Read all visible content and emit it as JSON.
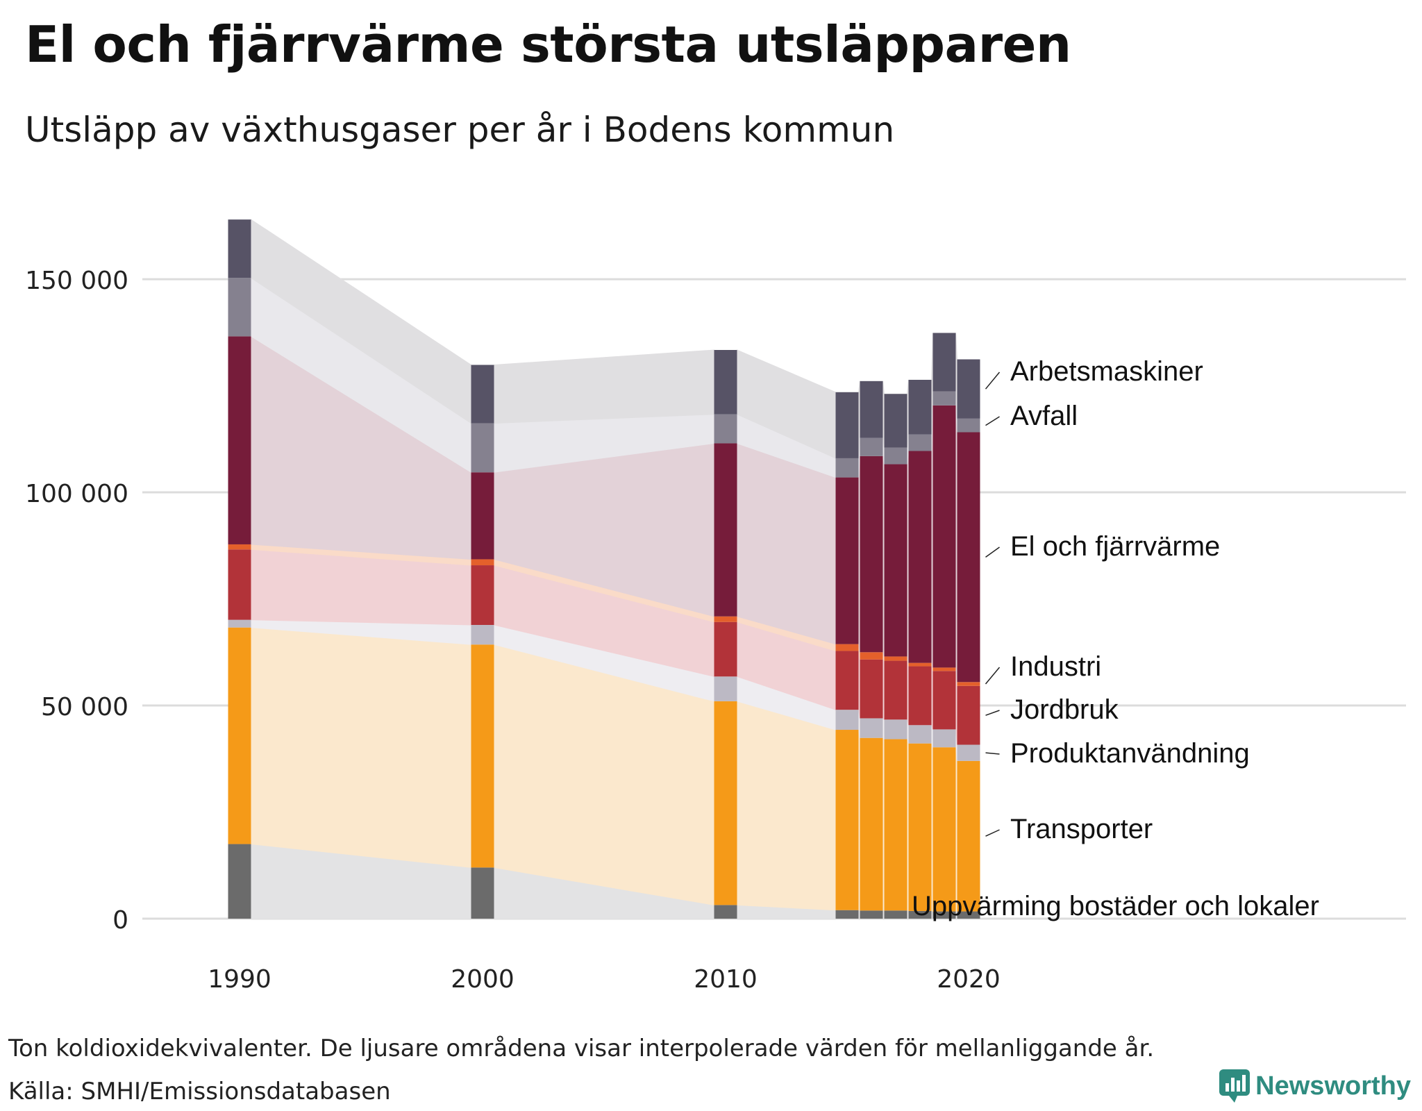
{
  "title": "El och fjärrvärme största utsläpparen",
  "subtitle": "Utsläpp av växthusgaser per år i Bodens kommun",
  "footnote": "Ton koldioxidekvivalenter. De ljusare områdena visar interpolerade värden för mellanliggande år.",
  "source": "Källa: SMHI/Emissionsdatabasen",
  "logo": {
    "text": "Newsworthy",
    "color": "#2f8c80"
  },
  "chart_data": {
    "type": "bar",
    "stacked": true,
    "years": [
      1990,
      2000,
      2010,
      2015,
      2016,
      2017,
      2018,
      2019,
      2020
    ],
    "x_ticks": [
      "1990",
      "2000",
      "2010",
      "2020"
    ],
    "x_tick_values": [
      1990,
      2000,
      2010,
      2020
    ],
    "y_ticks": [
      {
        "value": 0,
        "label": "0"
      },
      {
        "value": 50000,
        "label": "50 000"
      },
      {
        "value": 100000,
        "label": "100 000"
      },
      {
        "value": 150000,
        "label": "150 000"
      }
    ],
    "ylim": [
      0,
      165000
    ],
    "xlim": [
      1986,
      2038
    ],
    "series": [
      {
        "name": "Uppvärming bostäder och lokaler",
        "color": "#6b6b6b",
        "band": "#e3e3e4",
        "values": [
          17500,
          12000,
          3200,
          2000,
          1900,
          1900,
          1800,
          1700,
          1700
        ]
      },
      {
        "name": "Transporter",
        "color": "#f59a18",
        "band": "#fbe8cd",
        "values": [
          50800,
          52300,
          47800,
          42300,
          40500,
          40200,
          39300,
          38500,
          35300
        ]
      },
      {
        "name": "Produktanvändning",
        "color": "#bcb9c4",
        "band": "#eeedf1",
        "values": [
          1800,
          4600,
          5800,
          4700,
          4600,
          4600,
          4300,
          4200,
          3800
        ]
      },
      {
        "name": "Jordbruk",
        "color": "#b23339",
        "band": "#f1d2d5",
        "values": [
          16500,
          14000,
          12800,
          13800,
          13800,
          13800,
          13800,
          13700,
          13800
        ]
      },
      {
        "name": "Industri",
        "color": "#e4602b",
        "band": "#fadbc8",
        "values": [
          1200,
          1400,
          1300,
          1600,
          1700,
          1000,
          800,
          800,
          900
        ]
      },
      {
        "name": "El och fjärrvärme",
        "color": "#761c3a",
        "band": "#e3d2d8",
        "values": [
          48800,
          20400,
          40600,
          39100,
          46000,
          45100,
          49700,
          61500,
          58600
        ]
      },
      {
        "name": "Avfall",
        "color": "#85818f",
        "band": "#e9e8ec",
        "values": [
          13700,
          11500,
          6800,
          4500,
          4300,
          3900,
          3900,
          3300,
          3200
        ]
      },
      {
        "name": "Arbetsmaskiner",
        "color": "#575366",
        "band": "#e0dfe1",
        "values": [
          13700,
          13700,
          15100,
          15500,
          13300,
          12600,
          12800,
          13700,
          13900
        ]
      }
    ]
  }
}
